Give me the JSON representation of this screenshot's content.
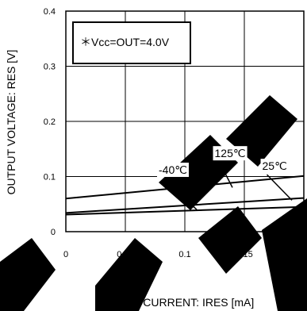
{
  "chart_data": {
    "type": "line",
    "xlabel": "SINK CURRENT: IRES [mA]",
    "ylabel": "OUTPUT VOLTAGE: RES [V]",
    "xlim": [
      0,
      0.2
    ],
    "ylim": [
      0,
      0.4
    ],
    "x_ticks": [
      "0",
      "0.05",
      "0.1",
      "0.15",
      "0.2"
    ],
    "y_ticks": [
      "0",
      "0.1",
      "0.2",
      "0.3",
      "0.4"
    ],
    "grid": true,
    "condition_box": "＊Vcc=OUT=4.0V",
    "series": [
      {
        "name": "125℃",
        "x": [
          0,
          0.2
        ],
        "y": [
          0.06,
          0.101
        ]
      },
      {
        "name": "25℃",
        "x": [
          0,
          0.2
        ],
        "y": [
          0.034,
          0.061
        ]
      },
      {
        "name": "-40℃",
        "x": [
          0,
          0.2
        ],
        "y": [
          0.031,
          0.045
        ]
      }
    ],
    "annotations": [
      {
        "text": "125℃",
        "x": 0.125,
        "y": 0.135,
        "points_to": [
          0.14,
          0.08
        ]
      },
      {
        "text": "-40℃",
        "x": 0.078,
        "y": 0.105,
        "points_to": [
          0.11,
          0.04
        ]
      },
      {
        "text": "25℃",
        "x": 0.165,
        "y": 0.112,
        "points_to": [
          0.19,
          0.057
        ]
      }
    ],
    "colors": {
      "line": "#000000",
      "grid": "#000000",
      "watermark": "#000000"
    }
  }
}
